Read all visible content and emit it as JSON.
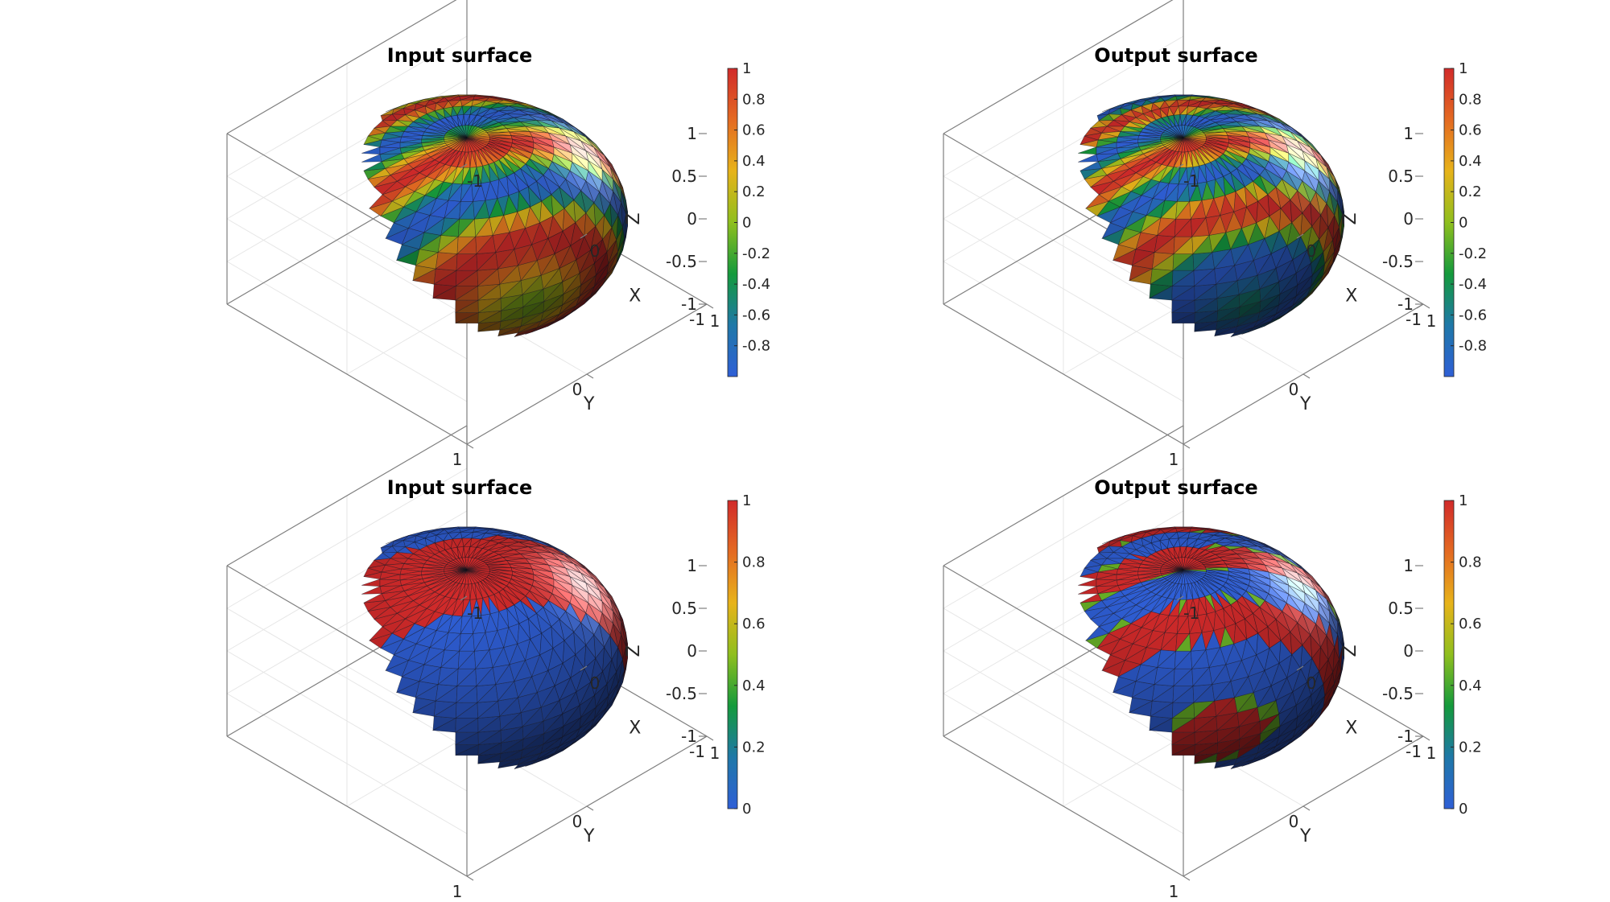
{
  "chart_data": [
    {
      "type": "surface",
      "title": "Input surface",
      "xlabel": "X",
      "ylabel": "Y",
      "zlabel": "Z",
      "xlim": [
        -1,
        1
      ],
      "ylim": [
        -1,
        1
      ],
      "zlim": [
        -1,
        1
      ],
      "xticks": [
        "-1",
        "0",
        "1"
      ],
      "yticks": [
        "-1",
        "0",
        "1"
      ],
      "zticks": [
        "-1",
        "-0.5",
        "0",
        "0.5",
        "1"
      ],
      "grid": true,
      "colormap": "spectral",
      "clim": [
        -1,
        1
      ],
      "colorbar_ticks": [
        "-0.8",
        "-0.6",
        "-0.4",
        "-0.2",
        "0",
        "0.2",
        "0.4",
        "0.6",
        "0.8",
        "1"
      ],
      "pattern": "bands"
    },
    {
      "type": "surface",
      "title": "Output surface",
      "xlabel": "X",
      "ylabel": "Y",
      "zlabel": "Z",
      "xlim": [
        -1,
        1
      ],
      "ylim": [
        -1,
        1
      ],
      "zlim": [
        -1,
        1
      ],
      "xticks": [
        "-1",
        "0",
        "1"
      ],
      "yticks": [
        "-1",
        "0",
        "1"
      ],
      "zticks": [
        "-1",
        "-0.5",
        "0",
        "0.5",
        "1"
      ],
      "grid": true,
      "colormap": "spectral",
      "clim": [
        -1,
        1
      ],
      "colorbar_ticks": [
        "-0.8",
        "-0.6",
        "-0.4",
        "-0.2",
        "0",
        "0.2",
        "0.4",
        "0.6",
        "0.8",
        "1"
      ],
      "pattern": "bands-fine"
    },
    {
      "type": "surface",
      "title": "Input surface",
      "xlabel": "X",
      "ylabel": "Y",
      "zlabel": "Z",
      "xlim": [
        -1,
        1
      ],
      "ylim": [
        -1,
        1
      ],
      "zlim": [
        -1,
        1
      ],
      "xticks": [
        "-1",
        "0",
        "1"
      ],
      "yticks": [
        "-1",
        "0",
        "1"
      ],
      "zticks": [
        "-1",
        "-0.5",
        "0",
        "0.5",
        "1"
      ],
      "grid": true,
      "colormap": "spectral",
      "clim": [
        0,
        1
      ],
      "colorbar_ticks": [
        "0",
        "0.2",
        "0.4",
        "0.6",
        "0.8",
        "1"
      ],
      "pattern": "binary"
    },
    {
      "type": "surface",
      "title": "Output surface",
      "xlabel": "X",
      "ylabel": "Y",
      "zlabel": "Z",
      "xlim": [
        -1,
        1
      ],
      "ylim": [
        -1,
        1
      ],
      "zlim": [
        -1,
        1
      ],
      "xticks": [
        "-1",
        "0",
        "1"
      ],
      "yticks": [
        "-1",
        "0",
        "1"
      ],
      "zticks": [
        "-1",
        "-0.5",
        "0",
        "0.5",
        "1"
      ],
      "grid": true,
      "colormap": "spectral",
      "clim": [
        0,
        1
      ],
      "colorbar_ticks": [
        "0",
        "0.2",
        "0.4",
        "0.6",
        "0.8",
        "1"
      ],
      "pattern": "binary-fine"
    }
  ],
  "colors": {
    "cmap_stops": [
      "#2f5fd6",
      "#1f78a8",
      "#149a3c",
      "#8fbf1e",
      "#e7b31a",
      "#e46a22",
      "#d12a2a"
    ],
    "axis_line": "#7f7f7f",
    "grid_line": "#e6e6e6"
  }
}
